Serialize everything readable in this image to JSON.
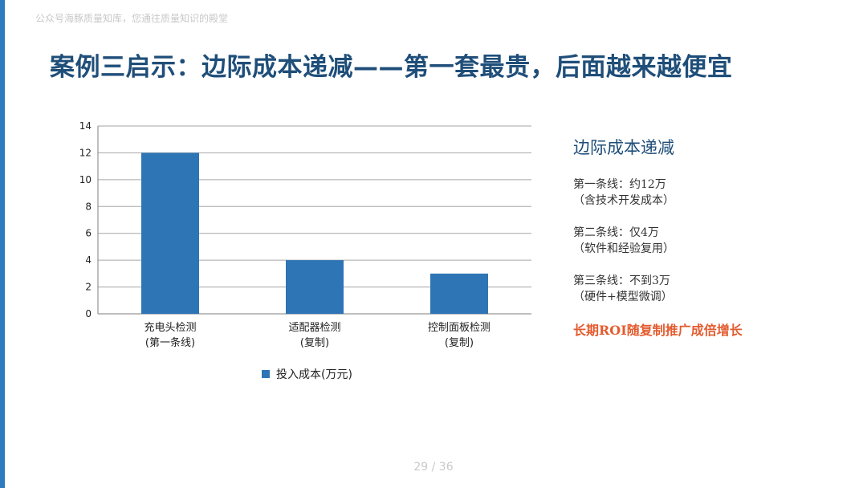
{
  "watermark": "公众号海豚质量知库，您通往质量知识的殿堂",
  "title": "案例三启示：边际成本递减——第一套最贵，后面越来越便宜",
  "side_panel": {
    "heading": "边际成本递减",
    "items": [
      {
        "line1": "第一条线：约12万",
        "line2": "（含技术开发成本）"
      },
      {
        "line1": "第二条线：仅4万",
        "line2": "（软件和经验复用）"
      },
      {
        "line1": "第三条线：不到3万",
        "line2": "（硬件+模型微调）"
      }
    ],
    "highlight": "长期ROI随复制推广成倍增长"
  },
  "page_number": "29 / 36",
  "colors": {
    "bar": "#2e75b6",
    "title": "#1f4e79",
    "highlight": "#e35b2f",
    "accent_bar": "#2e7bbd"
  },
  "chart_data": {
    "type": "bar",
    "categories": [
      [
        "充电头检测",
        "(第一条线)"
      ],
      [
        "适配器检测",
        "(复制)"
      ],
      [
        "控制面板检测",
        "(复制)"
      ]
    ],
    "series": [
      {
        "name": "投入成本(万元)",
        "values": [
          12,
          4,
          3
        ]
      }
    ],
    "ylim": [
      0,
      14
    ],
    "yticks": [
      0,
      2,
      4,
      6,
      8,
      10,
      12,
      14
    ],
    "grid": true,
    "legend": "bottom"
  }
}
